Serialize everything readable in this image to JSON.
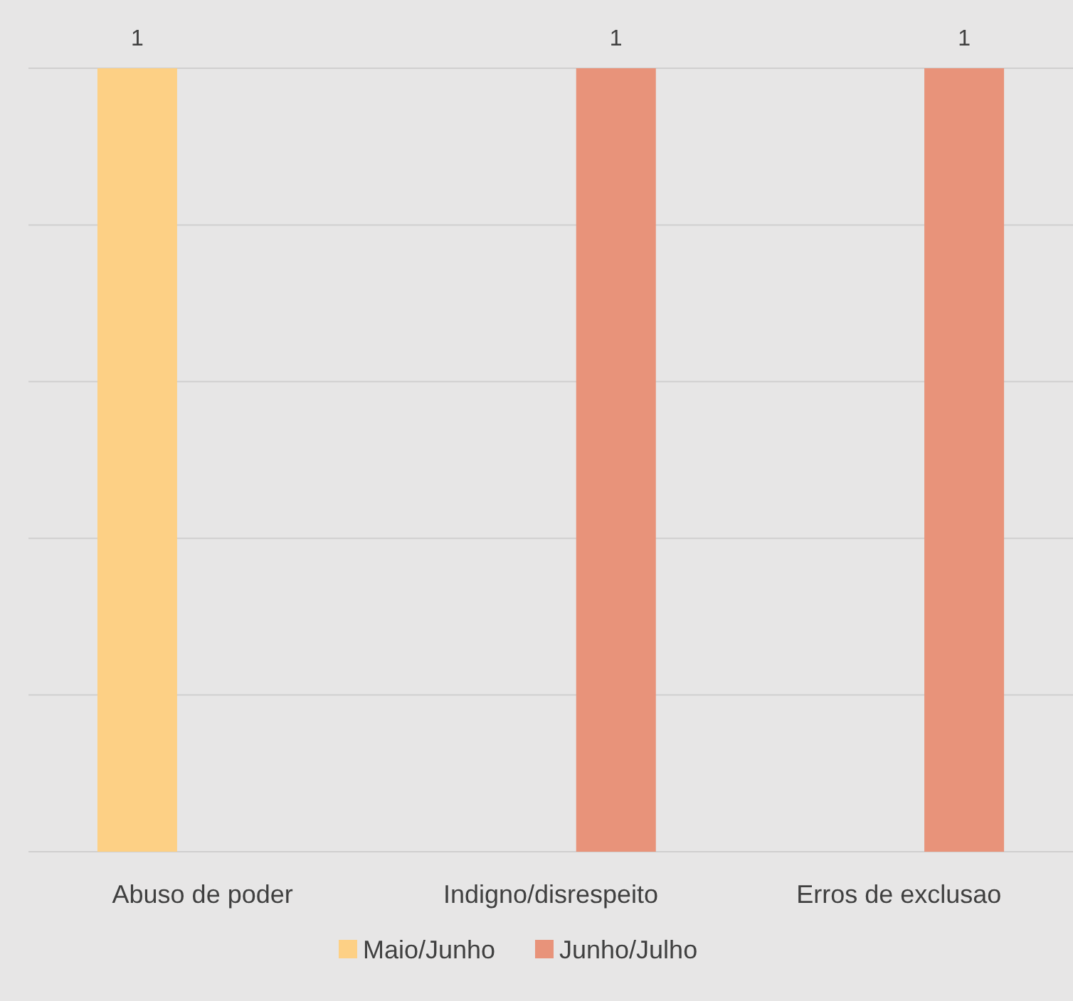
{
  "chart_data": {
    "type": "bar",
    "categories": [
      "Abuso de poder",
      "Indigno/disrespeito",
      "Erros de exclusao"
    ],
    "series": [
      {
        "name": "Maio/Junho",
        "color": "#fdd085",
        "values": [
          1,
          null,
          null
        ]
      },
      {
        "name": "Junho/Julho",
        "color": "#e8937a",
        "values": [
          null,
          1,
          1
        ]
      }
    ],
    "ylim": [
      0,
      1
    ],
    "yticks": [
      {
        "value": 0,
        "label": null
      },
      {
        "value": 0.2,
        "label": null
      },
      {
        "value": 0.4,
        "label": null
      },
      {
        "value": 0.6,
        "label": null
      },
      {
        "value": 0.8,
        "label": null
      },
      {
        "value": 1,
        "label": null
      }
    ],
    "tick_labels": "x",
    "grid": "y",
    "data_labels": true,
    "legend": "bottom"
  }
}
